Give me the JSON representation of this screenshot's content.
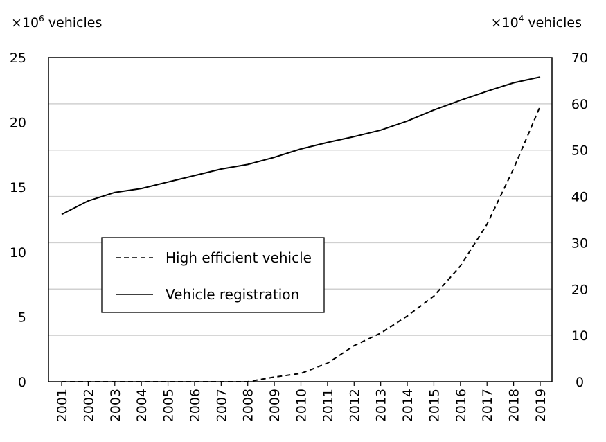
{
  "chart_data": {
    "type": "line",
    "title": "",
    "xlabel": "",
    "categories": [
      "2001",
      "2002",
      "2003",
      "2004",
      "2005",
      "2006",
      "2007",
      "2008",
      "2009",
      "2010",
      "2011",
      "2012",
      "2013",
      "2014",
      "2015",
      "2016",
      "2017",
      "2018",
      "2019"
    ],
    "left_axis": {
      "unit_base": "×10",
      "unit_exp": "6",
      "unit_word": " vehicles",
      "ylim": [
        0,
        25
      ],
      "ticks": [
        0,
        5,
        10,
        15,
        20,
        25
      ]
    },
    "right_axis": {
      "unit_base": "×10",
      "unit_exp": "4",
      "unit_word": " vehicles",
      "ylim": [
        0,
        70
      ],
      "ticks": [
        0,
        10,
        20,
        30,
        40,
        50,
        60,
        70
      ]
    },
    "grid": true,
    "legend_position": "center-left",
    "series": [
      {
        "name": "High efficient vehicle",
        "axis": "right",
        "style": "dashed",
        "values": [
          0,
          0,
          0,
          0,
          0,
          0,
          0,
          0,
          1.0,
          1.8,
          4.0,
          7.8,
          10.5,
          14.2,
          18.5,
          25.0,
          34.0,
          46.0,
          59.5
        ]
      },
      {
        "name": "Vehicle registration",
        "axis": "left",
        "style": "solid",
        "values": [
          12.9,
          13.95,
          14.6,
          14.9,
          15.4,
          15.9,
          16.4,
          16.75,
          17.3,
          17.95,
          18.45,
          18.9,
          19.4,
          20.1,
          20.95,
          21.7,
          22.4,
          23.05,
          23.5
        ]
      }
    ]
  }
}
